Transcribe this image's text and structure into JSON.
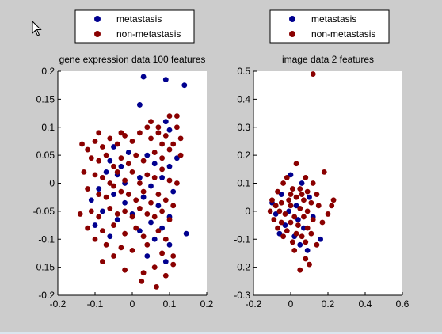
{
  "colors": {
    "figure_bg": "#cccccc",
    "axes_bg": "#ffffff",
    "metastasis": "#00008f",
    "non_metastasis": "#8a0000"
  },
  "icons": {
    "cursor": "mouse-pointer-icon"
  },
  "chart_data": [
    {
      "type": "scatter",
      "title": "gene expression data 100 features",
      "xlabel": "",
      "ylabel": "",
      "xlim": [
        -0.2,
        0.2
      ],
      "ylim": [
        -0.2,
        0.2
      ],
      "xticks": [
        -0.2,
        -0.1,
        0,
        0.1,
        0.2
      ],
      "yticks": [
        -0.2,
        -0.15,
        -0.1,
        -0.05,
        0,
        0.05,
        0.1,
        0.15,
        0.2
      ],
      "xtick_labels": [
        "-0.2",
        "-0.1",
        "0",
        "0.1",
        "0.2"
      ],
      "ytick_labels": [
        "-0.2",
        "-0.15",
        "-0.1",
        "-0.05",
        "0",
        "0.05",
        "0.1",
        "0.15",
        "0.2"
      ],
      "grid": false,
      "legend": {
        "position": "top",
        "entries": [
          "metastasis",
          "non-metastasis"
        ]
      },
      "series": [
        {
          "name": "metastasis",
          "points": [
            [
              0.03,
              0.19
            ],
            [
              0.09,
              0.185
            ],
            [
              0.14,
              0.175
            ],
            [
              0.02,
              0.14
            ],
            [
              0.09,
              0.11
            ],
            [
              0.1,
              0.095
            ],
            [
              -0.05,
              0.065
            ],
            [
              -0.01,
              0.055
            ],
            [
              0.04,
              0.05
            ],
            [
              0.12,
              0.045
            ],
            [
              -0.06,
              0.04
            ],
            [
              0.06,
              0.035
            ],
            [
              -0.03,
              0.03
            ],
            [
              0.1,
              0.03
            ],
            [
              -0.07,
              0.02
            ],
            [
              -0.04,
              0.015
            ],
            [
              0.02,
              0.01
            ],
            [
              0.08,
              0.01
            ],
            [
              -0.02,
              0.0
            ],
            [
              0.05,
              -0.005
            ],
            [
              -0.09,
              -0.01
            ],
            [
              0.11,
              -0.015
            ],
            [
              -0.05,
              -0.02
            ],
            [
              0.03,
              -0.025
            ],
            [
              -0.11,
              -0.03
            ],
            [
              -0.02,
              -0.035
            ],
            [
              0.07,
              -0.04
            ],
            [
              -0.08,
              -0.05
            ],
            [
              0.0,
              -0.055
            ],
            [
              0.1,
              -0.06
            ],
            [
              -0.04,
              -0.065
            ],
            [
              0.05,
              -0.07
            ],
            [
              -0.1,
              -0.075
            ],
            [
              0.08,
              -0.08
            ],
            [
              0.02,
              -0.085
            ],
            [
              -0.06,
              -0.095
            ],
            [
              0.145,
              -0.09
            ],
            [
              0.06,
              -0.1
            ],
            [
              0.1,
              -0.11
            ],
            [
              0.04,
              -0.13
            ],
            [
              0.09,
              -0.14
            ]
          ]
        },
        {
          "name": "non-metastasis",
          "points": [
            [
              -0.135,
              0.07
            ],
            [
              -0.12,
              0.06
            ],
            [
              -0.1,
              0.075
            ],
            [
              -0.08,
              0.065
            ],
            [
              -0.06,
              0.08
            ],
            [
              -0.04,
              0.07
            ],
            [
              -0.02,
              0.085
            ],
            [
              0.0,
              0.075
            ],
            [
              0.02,
              0.09
            ],
            [
              0.05,
              0.08
            ],
            [
              0.07,
              0.09
            ],
            [
              0.09,
              0.085
            ],
            [
              0.12,
              0.1
            ],
            [
              0.11,
              0.07
            ],
            [
              -0.11,
              0.045
            ],
            [
              -0.09,
              0.04
            ],
            [
              -0.07,
              0.05
            ],
            [
              -0.05,
              0.03
            ],
            [
              -0.03,
              0.045
            ],
            [
              -0.01,
              0.035
            ],
            [
              0.01,
              0.05
            ],
            [
              0.03,
              0.04
            ],
            [
              0.06,
              0.055
            ],
            [
              0.08,
              0.045
            ],
            [
              0.1,
              0.06
            ],
            [
              0.13,
              0.05
            ],
            [
              -0.13,
              0.02
            ],
            [
              -0.1,
              0.015
            ],
            [
              -0.08,
              0.01
            ],
            [
              -0.06,
              0.0
            ],
            [
              -0.04,
              0.02
            ],
            [
              -0.02,
              0.005
            ],
            [
              0.0,
              0.02
            ],
            [
              0.02,
              0.0
            ],
            [
              0.04,
              0.015
            ],
            [
              0.06,
              0.01
            ],
            [
              0.08,
              0.025
            ],
            [
              0.1,
              0.005
            ],
            [
              0.12,
              0.0
            ],
            [
              -0.12,
              -0.01
            ],
            [
              -0.09,
              -0.02
            ],
            [
              -0.07,
              -0.025
            ],
            [
              -0.05,
              -0.005
            ],
            [
              -0.03,
              -0.015
            ],
            [
              -0.01,
              -0.02
            ],
            [
              0.01,
              -0.03
            ],
            [
              0.03,
              -0.015
            ],
            [
              0.05,
              -0.035
            ],
            [
              0.07,
              -0.02
            ],
            [
              0.09,
              -0.03
            ],
            [
              0.11,
              -0.04
            ],
            [
              -0.14,
              -0.055
            ],
            [
              -0.11,
              -0.05
            ],
            [
              -0.09,
              -0.06
            ],
            [
              -0.06,
              -0.045
            ],
            [
              -0.04,
              -0.055
            ],
            [
              -0.02,
              -0.05
            ],
            [
              0.0,
              -0.06
            ],
            [
              0.02,
              -0.045
            ],
            [
              0.04,
              -0.055
            ],
            [
              0.06,
              -0.06
            ],
            [
              0.08,
              -0.05
            ],
            [
              0.1,
              -0.065
            ],
            [
              -0.12,
              -0.08
            ],
            [
              -0.08,
              -0.085
            ],
            [
              -0.05,
              -0.075
            ],
            [
              -0.02,
              -0.09
            ],
            [
              0.01,
              -0.08
            ],
            [
              0.03,
              -0.095
            ],
            [
              0.07,
              -0.085
            ],
            [
              0.09,
              -0.1
            ],
            [
              -0.1,
              -0.1
            ],
            [
              -0.07,
              -0.11
            ],
            [
              -0.03,
              -0.115
            ],
            [
              0.0,
              -0.12
            ],
            [
              0.04,
              -0.11
            ],
            [
              0.08,
              -0.125
            ],
            [
              0.11,
              -0.13
            ],
            [
              -0.08,
              -0.14
            ],
            [
              -0.05,
              -0.13
            ],
            [
              -0.02,
              -0.155
            ],
            [
              0.03,
              -0.16
            ],
            [
              0.06,
              -0.15
            ],
            [
              0.09,
              -0.165
            ],
            [
              0.11,
              -0.145
            ],
            [
              0.025,
              -0.175
            ],
            [
              0.065,
              -0.185
            ],
            [
              0.12,
              0.12
            ],
            [
              0.1,
              0.12
            ],
            [
              0.07,
              0.1
            ],
            [
              0.05,
              0.11
            ],
            [
              0.13,
              0.08
            ],
            [
              0.08,
              0.07
            ],
            [
              -0.09,
              0.09
            ],
            [
              -0.03,
              0.09
            ],
            [
              0.04,
              0.1
            ]
          ]
        }
      ]
    },
    {
      "type": "scatter",
      "title": "image data 2 features",
      "xlabel": "",
      "ylabel": "",
      "xlim": [
        -0.2,
        0.6
      ],
      "ylim": [
        -0.3,
        0.5
      ],
      "xticks": [
        -0.2,
        0,
        0.2,
        0.4,
        0.6
      ],
      "yticks": [
        -0.3,
        -0.2,
        -0.1,
        0,
        0.1,
        0.2,
        0.3,
        0.4,
        0.5
      ],
      "xtick_labels": [
        "-0.2",
        "0",
        "0.2",
        "0.4",
        "0.6"
      ],
      "ytick_labels": [
        "-0.3",
        "-0.2",
        "-0.1",
        "0",
        "0.1",
        "0.2",
        "0.3",
        "0.4",
        "0.5"
      ],
      "grid": false,
      "legend": {
        "position": "top",
        "entries": [
          "metastasis",
          "non-metastasis"
        ]
      },
      "series": [
        {
          "name": "metastasis",
          "points": [
            [
              0.0,
              0.13
            ],
            [
              0.06,
              0.1
            ],
            [
              -0.05,
              0.06
            ],
            [
              0.1,
              0.05
            ],
            [
              -0.1,
              0.03
            ],
            [
              0.03,
              0.02
            ],
            [
              -0.08,
              -0.01
            ],
            [
              0.12,
              -0.02
            ],
            [
              -0.03,
              -0.05
            ],
            [
              0.07,
              -0.06
            ],
            [
              -0.06,
              -0.08
            ],
            [
              0.02,
              -0.09
            ],
            [
              0.16,
              -0.1
            ],
            [
              0.05,
              -0.12
            ],
            [
              0.09,
              -0.14
            ],
            [
              -0.01,
              0.0
            ],
            [
              0.04,
              -0.03
            ]
          ]
        },
        {
          "name": "non-metastasis",
          "points": [
            [
              0.12,
              0.49
            ],
            [
              0.03,
              0.17
            ],
            [
              0.18,
              0.14
            ],
            [
              -0.02,
              0.12
            ],
            [
              0.08,
              0.12
            ],
            [
              0.12,
              0.1
            ],
            [
              -0.04,
              0.1
            ],
            [
              0.05,
              0.08
            ],
            [
              0.09,
              0.07
            ],
            [
              -0.07,
              0.07
            ],
            [
              0.0,
              0.06
            ],
            [
              0.14,
              0.06
            ],
            [
              -0.1,
              0.04
            ],
            [
              0.03,
              0.05
            ],
            [
              0.07,
              0.04
            ],
            [
              -0.05,
              0.03
            ],
            [
              0.11,
              0.03
            ],
            [
              -0.08,
              0.02
            ],
            [
              0.0,
              0.02
            ],
            [
              0.05,
              0.01
            ],
            [
              0.09,
              0.0
            ],
            [
              -0.11,
              0.0
            ],
            [
              -0.03,
              -0.01
            ],
            [
              0.02,
              -0.02
            ],
            [
              0.07,
              -0.02
            ],
            [
              0.12,
              -0.03
            ],
            [
              -0.09,
              -0.03
            ],
            [
              -0.05,
              -0.04
            ],
            [
              0.0,
              -0.04
            ],
            [
              0.04,
              -0.05
            ],
            [
              0.09,
              -0.06
            ],
            [
              -0.07,
              -0.06
            ],
            [
              -0.02,
              -0.07
            ],
            [
              0.03,
              -0.08
            ],
            [
              0.06,
              -0.09
            ],
            [
              0.11,
              -0.08
            ],
            [
              -0.04,
              -0.09
            ],
            [
              0.01,
              -0.11
            ],
            [
              0.08,
              -0.11
            ],
            [
              0.14,
              -0.12
            ],
            [
              0.02,
              -0.14
            ],
            [
              0.08,
              -0.17
            ],
            [
              0.1,
              -0.19
            ],
            [
              0.05,
              -0.21
            ],
            [
              0.23,
              0.04
            ],
            [
              0.22,
              0.02
            ],
            [
              0.2,
              -0.01
            ],
            [
              0.17,
              -0.04
            ],
            [
              0.15,
              0.02
            ],
            [
              -0.06,
              0.0
            ],
            [
              0.01,
              0.08
            ],
            [
              -0.01,
              0.04
            ],
            [
              0.06,
              0.06
            ]
          ]
        }
      ]
    }
  ]
}
